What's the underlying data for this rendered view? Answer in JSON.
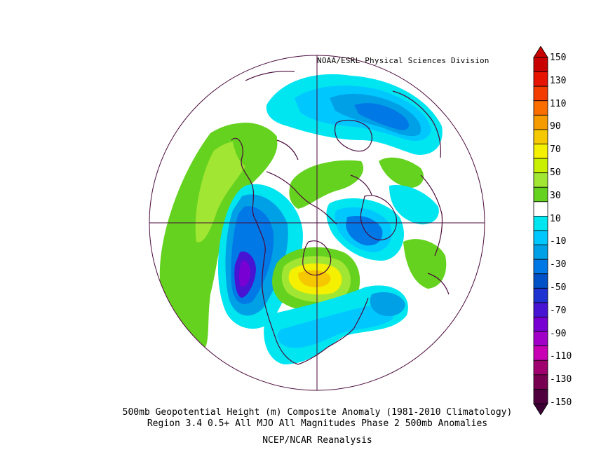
{
  "attribution": "NOAA/ESRL Physical Sciences Division",
  "caption": {
    "line1": "500mb Geopotential Height (m) Composite Anomaly (1981-2010 Climatology)",
    "line2": "Region 3.4 0.5+ All MJO All Magnitudes Phase 2 500mb Anomalies",
    "line3": "NCEP/NCAR Reanalysis"
  },
  "colorbar": {
    "labels": [
      "150",
      "130",
      "110",
      "90",
      "70",
      "50",
      "30",
      "10",
      "-10",
      "-30",
      "-50",
      "-70",
      "-90",
      "-110",
      "-130",
      "-150"
    ],
    "colors": [
      "#c80000",
      "#e61400",
      "#f53c00",
      "#fa6e00",
      "#f59b00",
      "#f5c800",
      "#f5f000",
      "#c8f000",
      "#a0e632",
      "#64d21e",
      "#ffffff",
      "#00e6f0",
      "#00c8ff",
      "#00a0e6",
      "#0078e6",
      "#0050c8",
      "#1e32d2",
      "#4614d2",
      "#7800d2",
      "#a000c8",
      "#c800b4",
      "#a0006e",
      "#780050",
      "#50003c"
    ],
    "top_color": "#c80000",
    "bottom_color": "#3c0032"
  },
  "map": {
    "projection": "north-polar-stereographic",
    "background": "#ffffff",
    "anomaly_colors": {
      "pos30": "#64d21e",
      "pos50": "#a0e632",
      "pos70": "#f5f000",
      "pos90": "#f5c800",
      "neg10": "#00e6f0",
      "neg30": "#00c8ff",
      "neg50": "#00a0e6",
      "neg70": "#0078e6",
      "neg90": "#1e32d2",
      "neg110": "#4614d2",
      "neg130": "#7800d2"
    },
    "coastline_color": "#4b0a3c"
  }
}
